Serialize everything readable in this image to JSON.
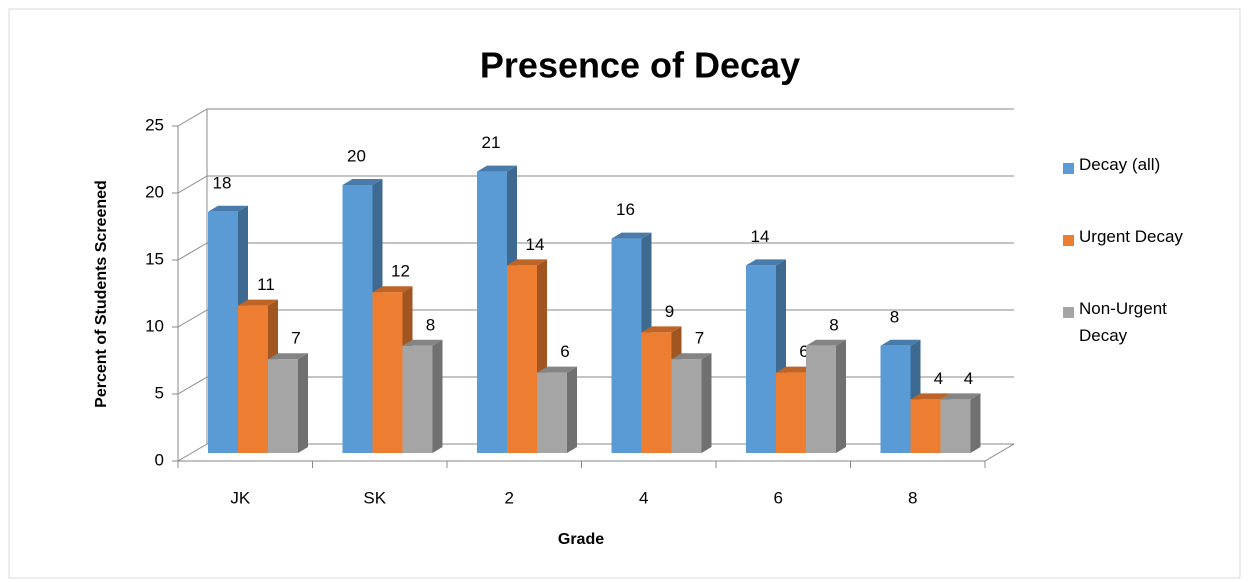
{
  "chart_data": {
    "type": "bar3d",
    "title": "Presence of Decay",
    "x_label": "Grade",
    "y_label": "Percent of Students Screened",
    "categories": [
      "JK",
      "SK",
      "2",
      "4",
      "6",
      "8"
    ],
    "series": [
      {
        "name": "Decay (all)",
        "color": "#5b9bd5",
        "values": [
          18,
          20,
          21,
          16,
          14,
          8
        ]
      },
      {
        "name": "Urgent Decay",
        "color": "#ed7d31",
        "values": [
          11,
          12,
          14,
          9,
          6,
          4
        ]
      },
      {
        "name": "Non-Urgent Decay",
        "color": "#a5a5a5",
        "values": [
          7,
          8,
          6,
          7,
          8,
          4
        ]
      }
    ],
    "ylim": [
      0,
      25
    ],
    "yticks": [
      0,
      5,
      10,
      15,
      20,
      25
    ],
    "grid": true,
    "legend": "right"
  }
}
